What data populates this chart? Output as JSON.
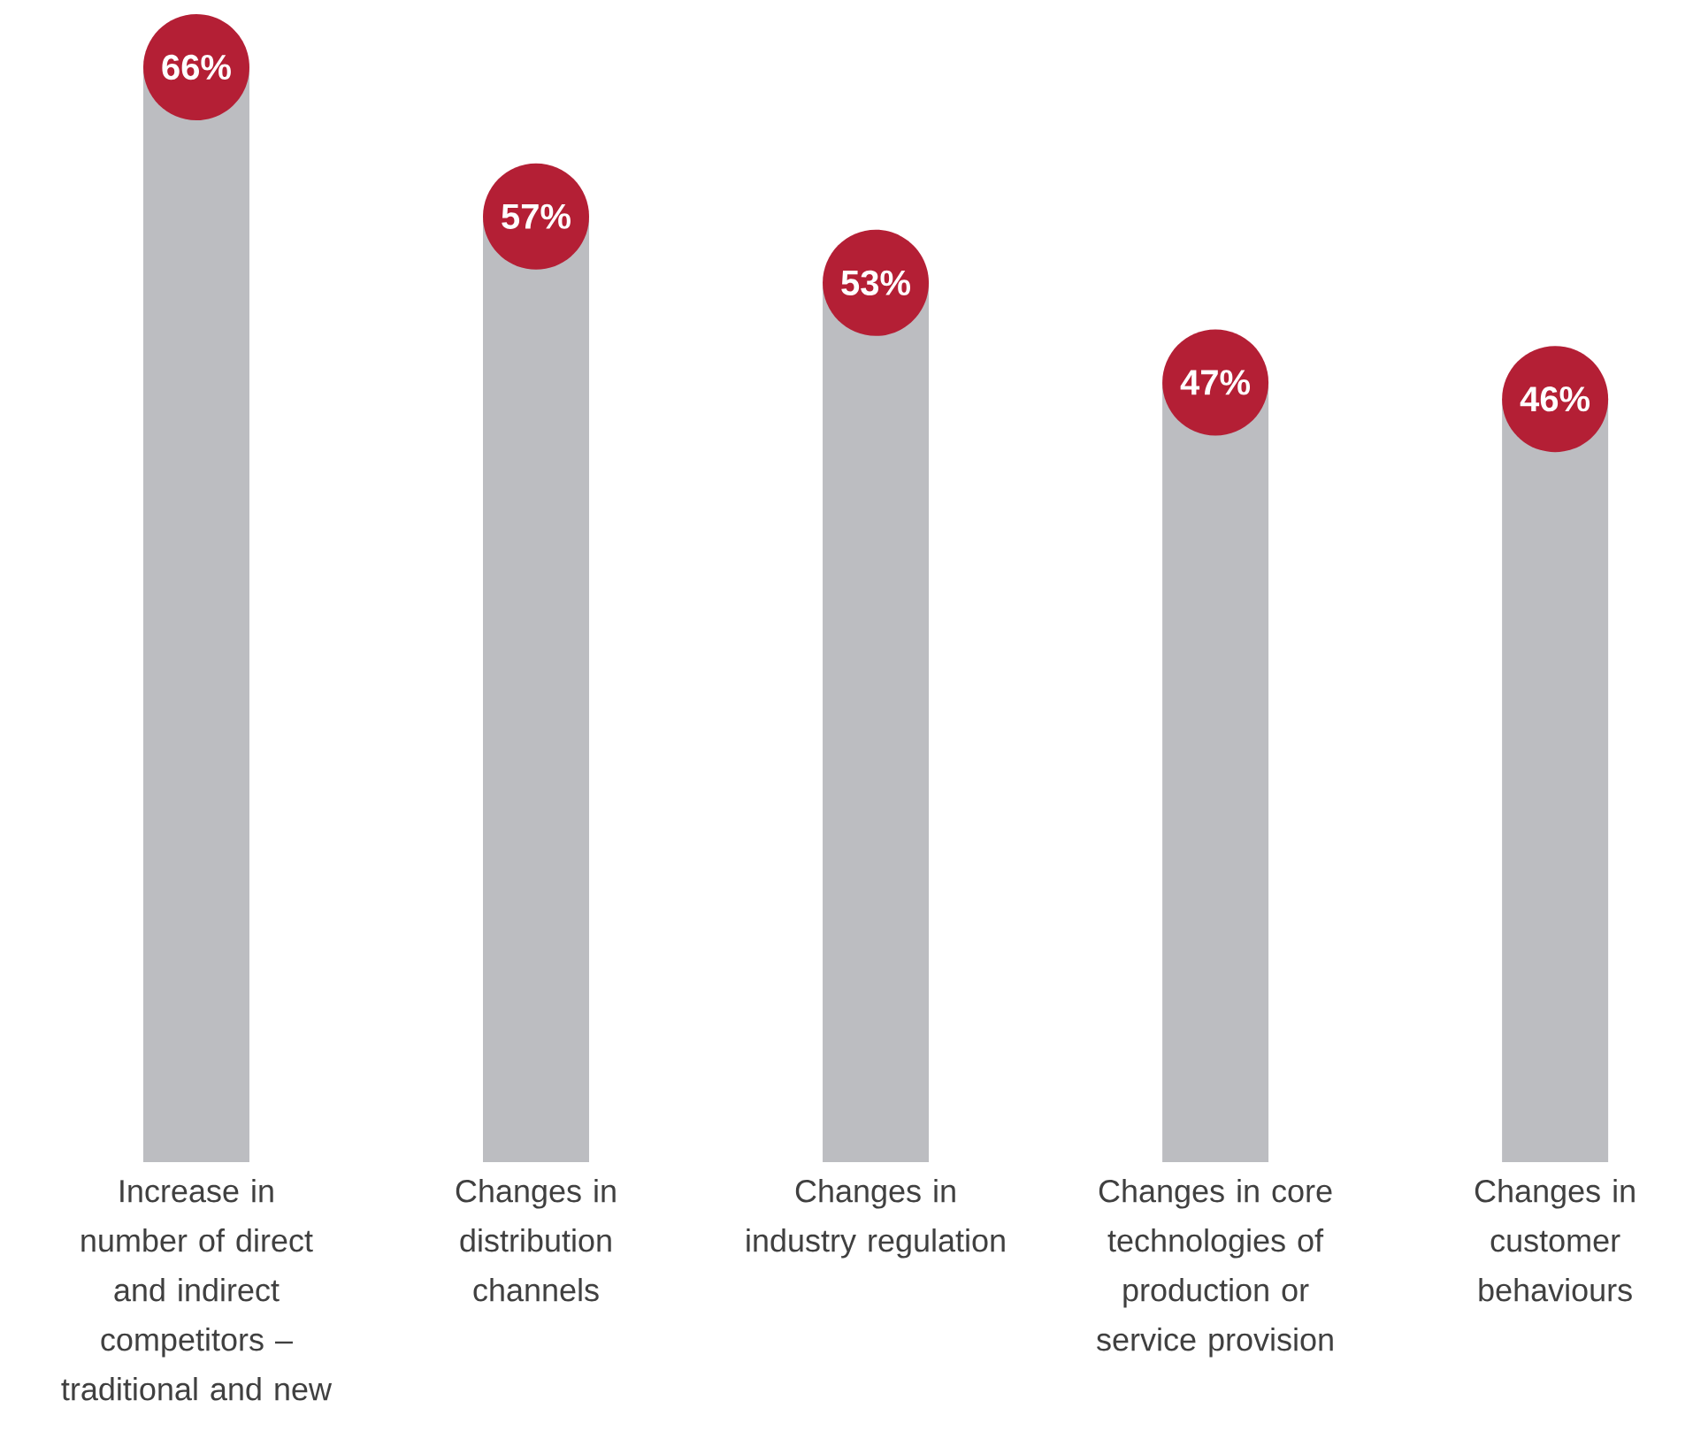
{
  "chart_data": {
    "type": "bar",
    "categories": [
      "Increase in number of direct and indirect competitors – traditional and new",
      "Changes in distribution channels",
      "Changes in industry regulation",
      "Changes in core technologies of production or service provision",
      "Changes in customer behaviours"
    ],
    "values": [
      66,
      57,
      53,
      47,
      46
    ],
    "value_labels": [
      "66%",
      "57%",
      "53%",
      "47%",
      "46%"
    ],
    "color": "#bcbdc1"
  }
}
